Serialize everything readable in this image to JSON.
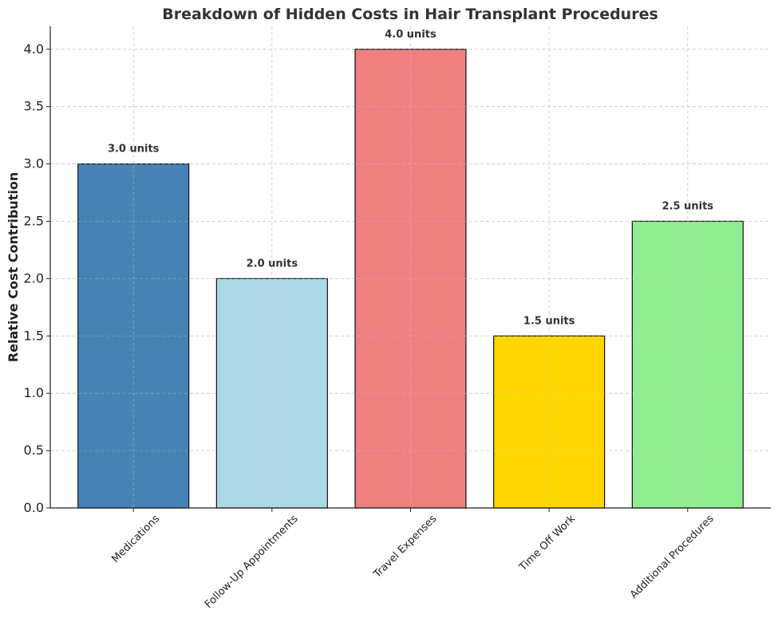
{
  "chart_data": {
    "type": "bar",
    "title": "Breakdown of Hidden Costs in Hair Transplant Procedures",
    "xlabel": "",
    "ylabel": "Relative Cost Contribution",
    "categories": [
      "Medications",
      "Follow-Up Appointments",
      "Travel Expenses",
      "Time Off Work",
      "Additional Procedures"
    ],
    "values": [
      3.0,
      2.0,
      4.0,
      1.5,
      2.5
    ],
    "data_labels": [
      "3.0 units",
      "2.0 units",
      "4.0 units",
      "1.5 units",
      "2.5 units"
    ],
    "colors": [
      "#4682b4",
      "#add8e6",
      "#f08080",
      "#ffd700",
      "#90ee90"
    ],
    "ylim": [
      0,
      4.2
    ],
    "yticks": [
      "0.0",
      "0.5",
      "1.0",
      "1.5",
      "2.0",
      "2.5",
      "3.0",
      "3.5",
      "4.0"
    ],
    "grid": true,
    "x_tick_rotation_deg": 45
  }
}
